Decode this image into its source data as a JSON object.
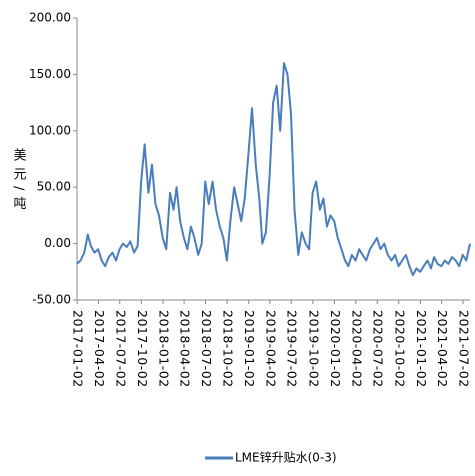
{
  "chart_data": {
    "type": "line",
    "y_label": "美元/吨",
    "x": [
      "2017-01-01",
      "2017-01-16",
      "2017-02-01",
      "2017-02-16",
      "2017-03-01",
      "2017-03-16",
      "2017-04-01",
      "2017-04-16",
      "2017-05-01",
      "2017-05-16",
      "2017-06-01",
      "2017-06-16",
      "2017-07-01",
      "2017-07-16",
      "2017-08-01",
      "2017-08-16",
      "2017-09-01",
      "2017-09-16",
      "2017-10-01",
      "2017-10-16",
      "2017-11-01",
      "2017-11-16",
      "2017-12-01",
      "2017-12-16",
      "2018-01-01",
      "2018-01-16",
      "2018-02-01",
      "2018-02-16",
      "2018-03-01",
      "2018-03-16",
      "2018-04-01",
      "2018-04-16",
      "2018-05-01",
      "2018-05-16",
      "2018-06-01",
      "2018-06-16",
      "2018-07-01",
      "2018-07-16",
      "2018-08-01",
      "2018-08-16",
      "2018-09-01",
      "2018-09-16",
      "2018-10-01",
      "2018-10-16",
      "2018-11-01",
      "2018-11-16",
      "2018-12-01",
      "2018-12-16",
      "2019-01-01",
      "2019-01-16",
      "2019-02-01",
      "2019-02-16",
      "2019-03-01",
      "2019-03-16",
      "2019-04-01",
      "2019-04-16",
      "2019-05-01",
      "2019-05-16",
      "2019-06-01",
      "2019-06-16",
      "2019-07-01",
      "2019-07-16",
      "2019-08-01",
      "2019-08-16",
      "2019-09-01",
      "2019-09-16",
      "2019-10-01",
      "2019-10-16",
      "2019-11-01",
      "2019-11-16",
      "2019-12-01",
      "2019-12-16",
      "2020-01-01",
      "2020-01-16",
      "2020-02-01",
      "2020-02-16",
      "2020-03-01",
      "2020-03-16",
      "2020-04-01",
      "2020-04-16",
      "2020-05-01",
      "2020-05-16",
      "2020-06-01",
      "2020-06-16",
      "2020-07-01",
      "2020-07-16",
      "2020-08-01",
      "2020-08-16",
      "2020-09-01",
      "2020-09-16",
      "2020-10-01",
      "2020-10-16",
      "2020-11-01",
      "2020-11-16",
      "2020-12-01",
      "2020-12-16",
      "2021-01-01",
      "2021-01-16",
      "2021-02-01",
      "2021-02-16",
      "2021-03-01",
      "2021-03-16",
      "2021-04-01",
      "2021-04-16",
      "2021-05-01",
      "2021-05-16",
      "2021-06-01",
      "2021-06-16",
      "2021-07-01",
      "2021-07-16",
      "2021-08-01"
    ],
    "series": [
      {
        "name": "LME锌升贴水(0-3)",
        "color": "#4a7ebb",
        "values": [
          -18,
          -15,
          -8,
          8,
          -2,
          -8,
          -5,
          -15,
          -20,
          -12,
          -8,
          -15,
          -5,
          0,
          -3,
          2,
          -8,
          -2,
          55,
          88,
          45,
          70,
          35,
          25,
          5,
          -5,
          45,
          30,
          50,
          20,
          5,
          -5,
          15,
          5,
          -10,
          0,
          55,
          35,
          55,
          30,
          15,
          5,
          -15,
          20,
          50,
          35,
          20,
          40,
          80,
          120,
          70,
          40,
          0,
          10,
          60,
          125,
          140,
          100,
          160,
          150,
          115,
          30,
          -10,
          10,
          0,
          -5,
          45,
          55,
          30,
          40,
          15,
          25,
          20,
          5,
          -5,
          -15,
          -20,
          -10,
          -15,
          -5,
          -10,
          -15,
          -5,
          0,
          5,
          -5,
          0,
          -10,
          -15,
          -10,
          -20,
          -15,
          -10,
          -20,
          -28,
          -22,
          -25,
          -20,
          -15,
          -22,
          -12,
          -18,
          -20,
          -15,
          -18,
          -12,
          -15,
          -20,
          -10,
          -15,
          0
        ]
      }
    ],
    "xlim": [
      "2017-01-01",
      "2021-08-01"
    ],
    "xticks": [
      "2017-01-02",
      "2017-04-02",
      "2017-07-02",
      "2017-10-02",
      "2018-01-02",
      "2018-04-02",
      "2018-07-02",
      "2018-10-02",
      "2019-01-02",
      "2019-04-02",
      "2019-07-02",
      "2019-10-02",
      "2020-01-02",
      "2020-04-02",
      "2020-07-02",
      "2020-10-02",
      "2021-01-02",
      "2021-04-02",
      "2021-07-02"
    ],
    "ylim": [
      -50,
      200
    ],
    "yticks": [
      {
        "value": -50,
        "label": "-50.00"
      },
      {
        "value": 0,
        "label": "0.00"
      },
      {
        "value": 50,
        "label": "50.00"
      },
      {
        "value": 100,
        "label": "100.00"
      },
      {
        "value": 150,
        "label": "150.00"
      },
      {
        "value": 200,
        "label": "200.00"
      }
    ],
    "grid": false,
    "legend": "bottom"
  }
}
